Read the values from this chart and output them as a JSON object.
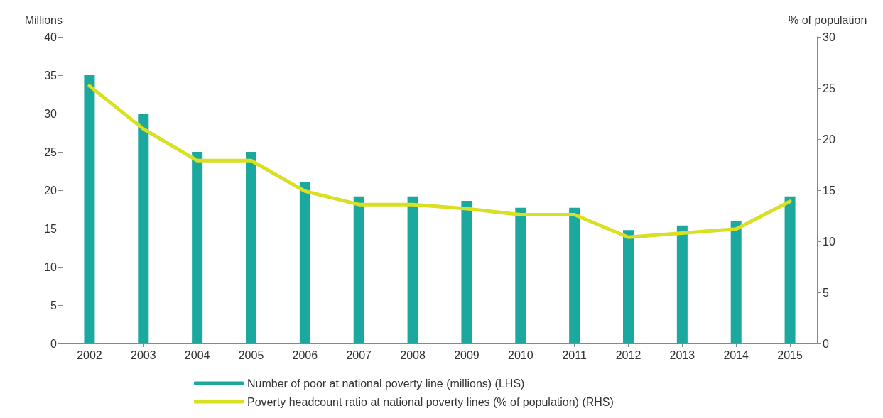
{
  "chart_data": {
    "type": "bar",
    "categories": [
      "2002",
      "2003",
      "2004",
      "2005",
      "2006",
      "2007",
      "2008",
      "2009",
      "2010",
      "2011",
      "2012",
      "2013",
      "2014",
      "2015"
    ],
    "ylabel": "Millions",
    "y2label": "% of population",
    "ylim": [
      0,
      40
    ],
    "yticks": [
      0,
      5,
      10,
      15,
      20,
      25,
      30,
      35,
      40
    ],
    "y2lim": [
      0,
      30
    ],
    "y2ticks": [
      0,
      5,
      10,
      15,
      20,
      25,
      30
    ],
    "series": [
      {
        "name": "Number of poor at national poverty line (millions) (LHS)",
        "color": "#1ba89f",
        "values": [
          35,
          30,
          25,
          25,
          21.1,
          19.2,
          19.2,
          18.6,
          17.7,
          17.7,
          14.8,
          15.4,
          16.0,
          19.2
        ]
      },
      {
        "name": "Poverty headcount ratio at national poverty lines (% of population) (RHS)",
        "type": "line",
        "axis": "y2",
        "color": "#d9e021",
        "marker": "none",
        "values": [
          25.2,
          21.0,
          17.9,
          17.9,
          14.9,
          13.6,
          13.6,
          13.2,
          12.6,
          12.6,
          10.4,
          10.8,
          11.2,
          13.9
        ]
      }
    ],
    "legend": "bottom",
    "grid": false
  }
}
